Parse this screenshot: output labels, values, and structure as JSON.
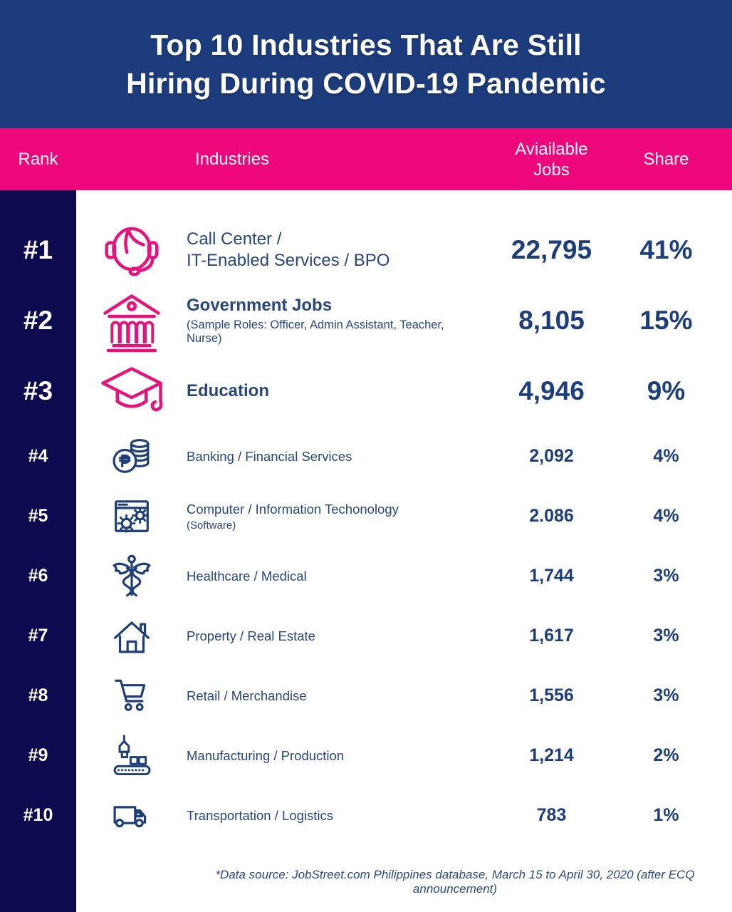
{
  "title": {
    "line1": "Top 10 Industries That Are Still",
    "line2": "Hiring During COVID-19 Pandemic"
  },
  "columns": {
    "rank": "Rank",
    "industries": "Industries",
    "jobs": "Aviailable\nJobs",
    "share": "Share"
  },
  "rows": [
    {
      "rank": "#1",
      "icon": "call-center-agent",
      "label": "Call Center /\nIT-Enabled Services / BPO",
      "sublabel": "",
      "jobs": "22,795",
      "share": "41%",
      "size": "big",
      "accent": "pink",
      "label_bold": false
    },
    {
      "rank": "#2",
      "icon": "government-building",
      "label": "Government Jobs",
      "sublabel": "(Sample Roles: Officer, Admin Assistant, Teacher, Nurse)",
      "jobs": "8,105",
      "share": "15%",
      "size": "big",
      "accent": "pink",
      "label_bold": true
    },
    {
      "rank": "#3",
      "icon": "graduation-cap",
      "label": "Education",
      "sublabel": "",
      "jobs": "4,946",
      "share": "9%",
      "size": "big",
      "accent": "pink",
      "label_bold": true
    },
    {
      "rank": "#4",
      "icon": "peso-coins",
      "label": "Banking / Financial Services",
      "sublabel": "",
      "jobs": "2,092",
      "share": "4%",
      "size": "small",
      "accent": "navy",
      "label_bold": false
    },
    {
      "rank": "#5",
      "icon": "software-window-gears",
      "label": "Computer / Information Techonology",
      "sublabel": "(Software)",
      "jobs": "2.086",
      "share": "4%",
      "size": "small",
      "accent": "navy",
      "label_bold": false
    },
    {
      "rank": "#6",
      "icon": "caduceus",
      "label": "Healthcare / Medical",
      "sublabel": "",
      "jobs": "1,744",
      "share": "3%",
      "size": "small",
      "accent": "navy",
      "label_bold": false
    },
    {
      "rank": "#7",
      "icon": "house",
      "label": "Property / Real Estate",
      "sublabel": "",
      "jobs": "1,617",
      "share": "3%",
      "size": "small",
      "accent": "navy",
      "label_bold": false
    },
    {
      "rank": "#8",
      "icon": "shopping-cart",
      "label": "Retail / Merchandise",
      "sublabel": "",
      "jobs": "1,556",
      "share": "3%",
      "size": "small",
      "accent": "navy",
      "label_bold": false
    },
    {
      "rank": "#9",
      "icon": "conveyor-crane",
      "label": "Manufacturing / Production",
      "sublabel": "",
      "jobs": "1,214",
      "share": "2%",
      "size": "small",
      "accent": "navy",
      "label_bold": false
    },
    {
      "rank": "#10",
      "icon": "delivery-van",
      "label": "Transportation / Logistics",
      "sublabel": "",
      "jobs": "783",
      "share": "1%",
      "size": "small",
      "accent": "navy",
      "label_bold": false
    }
  ],
  "footnote": "*Data source: JobStreet.com Philippines database, March 15 to April 30, 2020 (after ECQ announcement)",
  "colors": {
    "header_blue": "#1d3c7d",
    "pink": "#ee067d",
    "rail_navy": "#0d0a4f",
    "text_navy": "#1c3e7d",
    "icon_pink": "#e8127c",
    "icon_navy": "#1d3e78"
  },
  "chart_data": {
    "type": "table",
    "title": "Top 10 Industries That Are Still Hiring During COVID-19 Pandemic",
    "columns": [
      "Rank",
      "Industries",
      "Aviailable Jobs",
      "Share"
    ],
    "categories": [
      "Call Center / IT-Enabled Services / BPO",
      "Government Jobs (Sample Roles: Officer, Admin Assistant, Teacher, Nurse)",
      "Education",
      "Banking / Financial Services",
      "Computer / Information Techonology (Software)",
      "Healthcare / Medical",
      "Property / Real Estate",
      "Retail / Merchandise",
      "Manufacturing / Production",
      "Transportation / Logistics"
    ],
    "available_jobs": [
      22795,
      8105,
      4946,
      2092,
      2086,
      1744,
      1617,
      1556,
      1214,
      783
    ],
    "share_percent": [
      41,
      15,
      9,
      4,
      4,
      3,
      3,
      3,
      2,
      1
    ],
    "available_jobs_display": [
      "22,795",
      "8,105",
      "4,946",
      "2,092",
      "2.086",
      "1,744",
      "1,617",
      "1,556",
      "1,214",
      "783"
    ],
    "source_note": "*Data source: JobStreet.com Philippines database, March 15 to April 30, 2020 (after ECQ announcement)"
  }
}
